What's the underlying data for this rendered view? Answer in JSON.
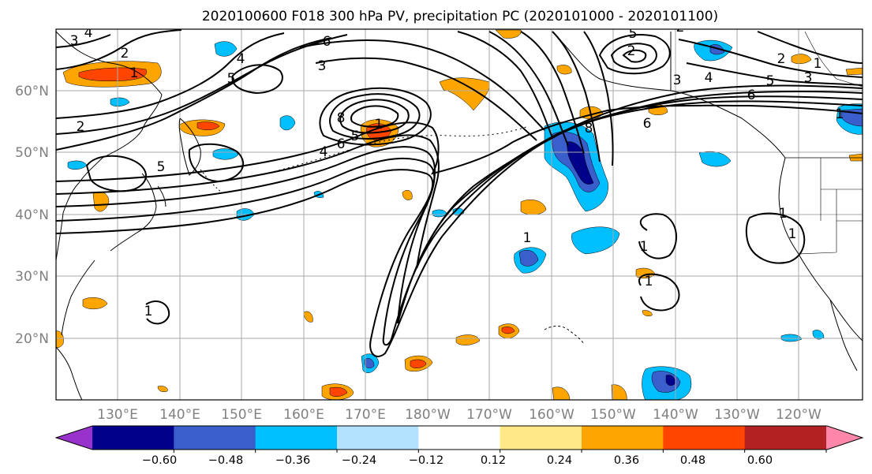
{
  "title": "2020100600 F018 300 hPa PV, precipitation PC (2020101000 - 2020101100)",
  "map": {
    "lat_labels": [
      "60°N",
      "50°N",
      "40°N",
      "30°N",
      "20°N"
    ],
    "lon_labels": [
      "130°E",
      "140°E",
      "150°E",
      "160°E",
      "170°E",
      "180°W",
      "170°W",
      "160°W",
      "150°W",
      "140°W",
      "130°W",
      "120°W"
    ],
    "grid": true,
    "land_color": "#ffffff",
    "coast_color": "#000000",
    "gridline_color": "#aaaaaa"
  },
  "colorbar": {
    "tick_labels": [
      "−0.60",
      "−0.48",
      "−0.36",
      "−0.24",
      "−0.12",
      "0.12",
      "0.24",
      "0.36",
      "0.48",
      "0.60"
    ],
    "colors": [
      "#9932cc",
      "#00008b",
      "#3a5fcd",
      "#00bfff",
      "#b2e2ff",
      "#ffffff",
      "#ffe987",
      "#ffa500",
      "#ff4500",
      "#b22222",
      "#ff88aa"
    ],
    "extend": "both"
  },
  "contour_labels": [
    {
      "text": "3"
    },
    {
      "text": "4"
    },
    {
      "text": "2"
    },
    {
      "text": "1"
    },
    {
      "text": "5"
    },
    {
      "text": "2"
    },
    {
      "text": "3"
    },
    {
      "text": "6"
    },
    {
      "text": "5"
    },
    {
      "text": "8"
    },
    {
      "text": "4"
    },
    {
      "text": "6"
    },
    {
      "text": "5"
    },
    {
      "text": "1"
    },
    {
      "text": "4"
    },
    {
      "text": "1"
    },
    {
      "text": "2"
    },
    {
      "text": "5"
    },
    {
      "text": "3"
    },
    {
      "text": "4"
    },
    {
      "text": "5"
    },
    {
      "text": "6"
    },
    {
      "text": "2"
    },
    {
      "text": "8"
    },
    {
      "text": "1"
    },
    {
      "text": "3"
    },
    {
      "text": "1"
    },
    {
      "text": "6"
    },
    {
      "text": "1"
    },
    {
      "text": "1"
    },
    {
      "text": "1"
    },
    {
      "text": "1"
    },
    {
      "text": "2"
    },
    {
      "text": "1"
    }
  ]
}
